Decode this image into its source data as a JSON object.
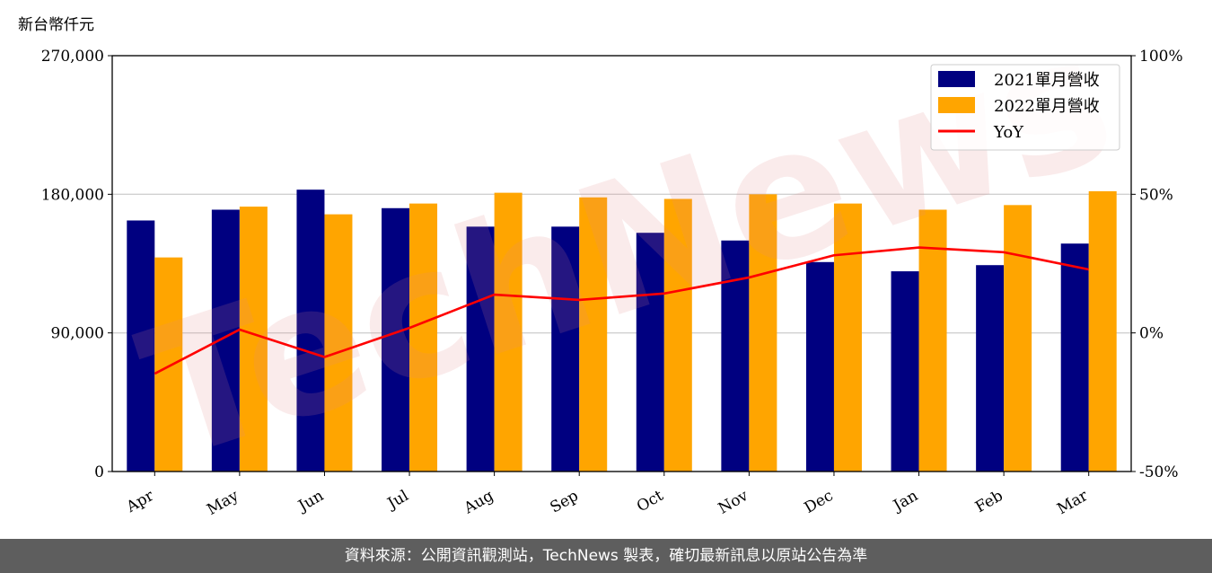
{
  "chart_data": {
    "type": "bar",
    "unit_label": "新台幣仟元",
    "categories": [
      "Apr",
      "May",
      "Jun",
      "Jul",
      "Aug",
      "Sep",
      "Oct",
      "Nov",
      "Dec",
      "Jan",
      "Feb",
      "Mar"
    ],
    "series": [
      {
        "name": "2021單月營收",
        "type": "bar",
        "color": "#000080",
        "values": [
          163000,
          170000,
          183000,
          171000,
          159000,
          159000,
          155000,
          150000,
          136000,
          130000,
          134000,
          148000
        ]
      },
      {
        "name": "2022單月營收",
        "type": "bar",
        "color": "#ffa500",
        "values": [
          139000,
          172000,
          167000,
          174000,
          181000,
          178000,
          177000,
          180000,
          174000,
          170000,
          173000,
          182000
        ]
      },
      {
        "name": "YoY",
        "type": "line",
        "axis": "right",
        "color": "#ff0000",
        "values": [
          -14.7,
          1.2,
          -8.7,
          1.8,
          13.8,
          11.9,
          14.2,
          20.0,
          28.0,
          30.8,
          29.1,
          22.9
        ]
      }
    ],
    "ylim": [
      0,
      270000
    ],
    "yticks": [
      "0",
      "90,000",
      "180,000",
      "270,000"
    ],
    "y2lim": [
      -50,
      100
    ],
    "y2ticks": [
      "-50%",
      "0%",
      "50%",
      "100%"
    ],
    "grid": "horizontal",
    "legend": "top-right"
  },
  "watermark": "TechNews",
  "footer": "資料來源：公開資訊觀測站，TechNews 製表，確切最新訊息以原站公告為準"
}
